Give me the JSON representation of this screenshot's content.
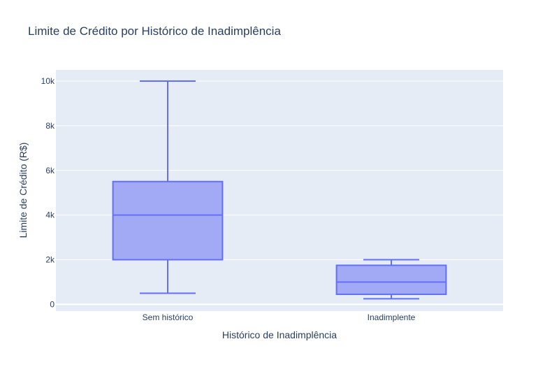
{
  "chart_data": {
    "type": "box",
    "title": "Limite de Crédito por Histórico de Inadimplência",
    "xlabel": "Histórico de Inadimplência",
    "ylabel": "Limite de Crédito (R$)",
    "ylim": [
      -300,
      10500
    ],
    "yticks": [
      0,
      2000,
      4000,
      6000,
      8000,
      10000
    ],
    "ytick_labels": [
      "0",
      "2k",
      "4k",
      "6k",
      "8k",
      "10k"
    ],
    "categories": [
      "Sem histórico",
      "Inadimplente"
    ],
    "boxes": [
      {
        "category": "Sem histórico",
        "min": 500,
        "q1": 2000,
        "median": 4000,
        "q3": 5500,
        "max": 10000
      },
      {
        "category": "Inadimplente",
        "min": 250,
        "q1": 450,
        "median": 1000,
        "q3": 1750,
        "max": 2000
      }
    ],
    "grid": true,
    "colors": {
      "line": "#636efa",
      "fill": "#a3aaf5",
      "plot_bg": "#e5ecf6",
      "grid": "#ffffff",
      "text": "#2a3f5f"
    }
  }
}
